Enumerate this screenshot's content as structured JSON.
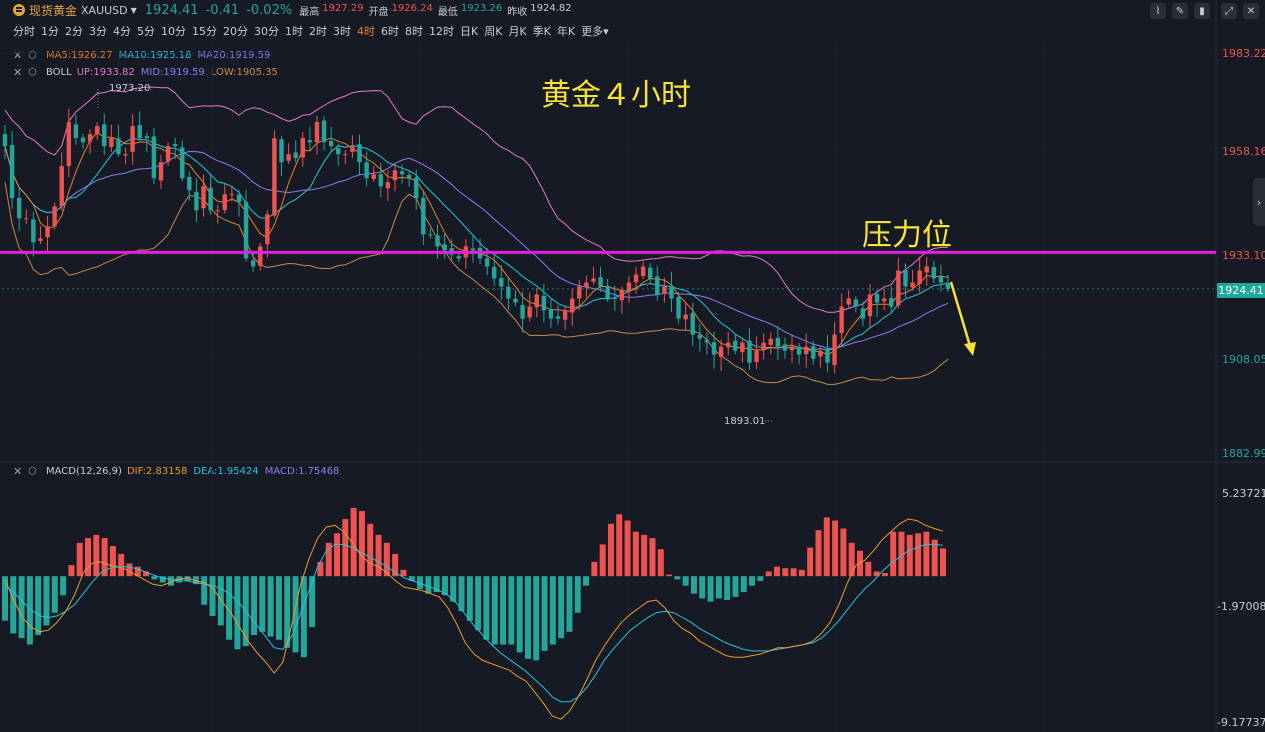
{
  "symbol": {
    "name": "现货黄金",
    "code": "XAUUSD",
    "price": "1924.41",
    "change": "-0.41",
    "change_pct": "-0.02%",
    "stats": [
      {
        "label": "最高",
        "value": "1927.29",
        "color": "#ef5350"
      },
      {
        "label": "开盘",
        "value": "1926.24",
        "color": "#ef5350"
      },
      {
        "label": "最低",
        "value": "1923.26",
        "color": "#26a69a"
      },
      {
        "label": "昨收",
        "value": "1924.82",
        "color": "#c9ccd4"
      }
    ]
  },
  "periods": [
    "分时",
    "1分",
    "2分",
    "3分",
    "4分",
    "5分",
    "10分",
    "15分",
    "20分",
    "30分",
    "1时",
    "2时",
    "3时",
    "4时",
    "6时",
    "8时",
    "12时",
    "日K",
    "周K",
    "月K",
    "季K",
    "年K",
    "更多"
  ],
  "active_period": "4时",
  "toolbar": [
    "chart-line-icon",
    "pencil-icon",
    "candles-icon",
    "expand-icon",
    "close-icon"
  ],
  "indicators": {
    "ma": {
      "name": "",
      "items": [
        {
          "text": "MA5:1926.27",
          "color": "#ef7d2b"
        },
        {
          "text": "MA10:1925.18",
          "color": "#26c6da"
        },
        {
          "text": "MA20:1919.59",
          "color": "#8c7cf0"
        }
      ]
    },
    "boll": {
      "name": "BOLL",
      "items": [
        {
          "text": "UP:1933.82",
          "color": "#e879c9"
        },
        {
          "text": "MID:1919.59",
          "color": "#8c7cf0"
        },
        {
          "text": "LOW:1905.35",
          "color": "#c98a4a"
        }
      ]
    },
    "macd": {
      "name": "MACD(12,26,9)",
      "items": [
        {
          "text": "DIF:2.83158",
          "color": "#ef9a2b"
        },
        {
          "text": "DEA:1.95424",
          "color": "#26c6da"
        },
        {
          "text": "MACD:1.75468",
          "color": "#8c7cf0"
        }
      ]
    }
  },
  "annotations": {
    "title": "黄金４小时",
    "resistance": "压力位"
  },
  "chart_data": [
    {
      "type": "candlestick",
      "ylim": [
        1882.99,
        1983.22
      ],
      "y_ticks": [
        "1983.22",
        "1958.16",
        "1933.10",
        "1908.05",
        "1882.99"
      ],
      "current_price": "1924.41",
      "high_marker": "1973.20",
      "low_marker": "1893.01",
      "resistance_level": 1933.5,
      "colors": {
        "up": "#ef5350",
        "down": "#26a69a",
        "ma5": "#ef7d2b",
        "ma10": "#26c6da",
        "ma20": "#8c7cf0",
        "boll_up": "#e879c9",
        "boll_low": "#c98a4a",
        "resistance": "#e81ce0",
        "arrow": "#f5e33a"
      },
      "close": [
        1960,
        1947,
        1942,
        1942,
        1936,
        1937,
        1940,
        1945,
        1955,
        1966,
        1962,
        1961,
        1963,
        1965,
        1960,
        1962,
        1958,
        1958,
        1965,
        1962,
        1962,
        1952,
        1956,
        1960,
        1960,
        1952,
        1949,
        1944,
        1950,
        1944,
        1944,
        1948,
        1948,
        1946,
        1932,
        1930,
        1935,
        1943,
        1962,
        1956,
        1958,
        1957,
        1962,
        1961,
        1966,
        1961,
        1960,
        1958,
        1958,
        1960,
        1956,
        1952,
        1953,
        1950,
        1951,
        1954,
        1953,
        1952,
        1947,
        1938,
        1938,
        1935,
        1934,
        1933,
        1932,
        1935,
        1934,
        1932,
        1930,
        1927,
        1925,
        1922,
        1921,
        1917,
        1920,
        1923,
        1919,
        1917,
        1917,
        1919,
        1922,
        1925,
        1926,
        1927,
        1925,
        1922,
        1922,
        1924,
        1926,
        1928,
        1930,
        1927,
        1923,
        1925,
        1922,
        1917,
        1918,
        1913,
        1912,
        1911,
        1908,
        1910,
        1911,
        1909,
        1911,
        1906,
        1909,
        1911,
        1912,
        1910,
        1909,
        1910,
        1908,
        1910,
        1907,
        1909,
        1906,
        1913,
        1920,
        1922,
        1920,
        1917,
        1923,
        1921,
        1922,
        1920,
        1929,
        1925,
        1926,
        1929,
        1930,
        1927,
        1926,
        1924.41
      ],
      "macd_panel": {
        "ylim": [
          -9.17737,
          5.23721
        ],
        "y_ticks": [
          "5.23721",
          "-1.97008",
          "-9.17737"
        ],
        "hist": [
          -2.8,
          -3.6,
          -3.9,
          -4.3,
          -3.7,
          -3.1,
          -2.3,
          -1.2,
          0.7,
          2.1,
          2.4,
          2.6,
          2.4,
          1.9,
          1.4,
          0.8,
          0.6,
          0.3,
          -0.2,
          -0.4,
          -0.6,
          -0.4,
          -0.3,
          -0.5,
          -1.8,
          -2.5,
          -3.1,
          -4.0,
          -4.6,
          -4.4,
          -3.7,
          -3.5,
          -3.8,
          -4.0,
          -4.5,
          -4.8,
          -5.1,
          -3.2,
          0.9,
          2.1,
          2.7,
          3.6,
          4.3,
          4.1,
          3.3,
          2.6,
          2.1,
          1.4,
          0.4,
          -0.3,
          -0.8,
          -1.1,
          -1.0,
          -1.2,
          -1.6,
          -2.2,
          -2.8,
          -3.4,
          -4.0,
          -4.3,
          -4.3,
          -4.3,
          -4.8,
          -5.2,
          -5.3,
          -4.7,
          -4.3,
          -3.9,
          -3.5,
          -2.3,
          -0.6,
          0.9,
          2.0,
          3.3,
          3.9,
          3.5,
          2.8,
          2.6,
          2.4,
          1.7,
          0.1,
          -0.2,
          -0.6,
          -1.1,
          -1.4,
          -1.6,
          -1.4,
          -1.5,
          -1.3,
          -1.0,
          -0.6,
          -0.3,
          0.3,
          0.6,
          0.5,
          0.5,
          0.4,
          1.8,
          2.9,
          3.7,
          3.5,
          3.0,
          2.1,
          1.6,
          0.9,
          0.3,
          0.2,
          2.8,
          2.8,
          2.6,
          2.7,
          2.8,
          2.3,
          1.75468
        ],
        "dif": [
          -0.2,
          -1.5,
          -2.6,
          -3.2,
          -3.5,
          -3.4,
          -2.9,
          -2.2,
          -1.2,
          0.2,
          0.8,
          0.9,
          0.7,
          0.6,
          0.4,
          0.1,
          -0.2,
          -0.5,
          -0.6,
          -0.4,
          -0.2,
          -0.1,
          -0.3,
          -0.4,
          -0.8,
          -1.6,
          -2.3,
          -3.2,
          -4.1,
          -4.8,
          -5.4,
          -6.1,
          -5.4,
          -3.1,
          -0.6,
          1.1,
          2.4,
          3.1,
          3.2,
          2.8,
          2.1,
          1.3,
          0.8,
          0.6,
          0.2,
          -0.3,
          -0.7,
          -0.8,
          -0.9,
          -1.1,
          -1.3,
          -2.0,
          -3.0,
          -4.2,
          -4.9,
          -5.3,
          -5.5,
          -5.7,
          -5.9,
          -6.3,
          -6.6,
          -7.3,
          -8.0,
          -8.8,
          -9.0,
          -8.5,
          -7.6,
          -6.5,
          -5.3,
          -4.4,
          -3.6,
          -2.9,
          -2.4,
          -2.0,
          -1.6,
          -1.5,
          -2.0,
          -2.8,
          -3.3,
          -3.6,
          -4.1,
          -4.4,
          -4.7,
          -5.0,
          -5.1,
          -5.1,
          -5.0,
          -4.9,
          -4.7,
          -4.5,
          -4.5,
          -4.4,
          -4.3,
          -4.1,
          -3.6,
          -2.9,
          -1.8,
          -0.4,
          0.7,
          1.0,
          1.6,
          2.3,
          2.8,
          3.3,
          3.6,
          3.5,
          3.2,
          3.0,
          2.83158
        ],
        "dea": [
          -0.6,
          -1.0,
          -1.6,
          -2.1,
          -2.5,
          -2.6,
          -2.5,
          -2.2,
          -1.8,
          -1.1,
          -0.4,
          0.2,
          0.5,
          0.6,
          0.6,
          0.5,
          0.3,
          0.1,
          -0.1,
          -0.2,
          -0.2,
          -0.3,
          -0.4,
          -0.5,
          -0.6,
          -0.8,
          -1.2,
          -1.7,
          -2.4,
          -3.1,
          -3.8,
          -4.5,
          -4.6,
          -3.8,
          -2.4,
          -0.9,
          0.6,
          1.6,
          2.0,
          2.0,
          1.8,
          1.5,
          1.2,
          0.9,
          0.6,
          0.2,
          -0.1,
          -0.3,
          -0.5,
          -0.7,
          -0.9,
          -1.2,
          -1.7,
          -2.4,
          -3.1,
          -3.7,
          -4.3,
          -4.8,
          -5.2,
          -5.6,
          -6.0,
          -6.5,
          -7.0,
          -7.6,
          -7.9,
          -7.9,
          -7.6,
          -7.0,
          -6.2,
          -5.3,
          -4.6,
          -4.0,
          -3.4,
          -3.0,
          -2.6,
          -2.3,
          -2.2,
          -2.3,
          -2.6,
          -2.9,
          -3.3,
          -3.6,
          -3.9,
          -4.2,
          -4.4,
          -4.6,
          -4.7,
          -4.7,
          -4.7,
          -4.6,
          -4.5,
          -4.4,
          -4.3,
          -4.2,
          -3.9,
          -3.4,
          -2.8,
          -2.1,
          -1.4,
          -0.8,
          -0.3,
          0.3,
          0.8,
          1.2,
          1.6,
          1.8,
          2.0,
          2.0,
          1.95424
        ]
      }
    }
  ]
}
